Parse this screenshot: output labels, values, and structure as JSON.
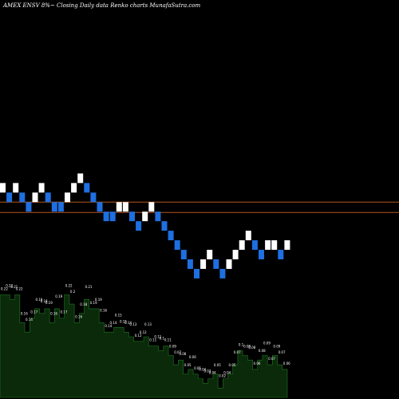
{
  "header": {
    "title": "AMEX  ENSV 8%~  Closing Daily data  Renko  charts MunafaSutra.com"
  },
  "colors": {
    "background": "#000000",
    "up_brick": "#ffffff",
    "down_brick": "#1e6fe0",
    "reference_line": "#b3541e",
    "volume_fill": "#0a2a0a",
    "volume_outline": "#1f7a1f",
    "volume_label": "#ffffff"
  },
  "chart_data": {
    "type": "renko",
    "price_scale_top": 0.36,
    "price_scale_bottom": 0.13,
    "brick_size": 0.0055,
    "reference_lines": [
      0.2435,
      0.2375
    ],
    "bricks": [
      {
        "dir": "up",
        "close": 0.2545
      },
      {
        "dir": "down",
        "close": 0.249
      },
      {
        "dir": "up",
        "close": 0.2545
      },
      {
        "dir": "down",
        "close": 0.249
      },
      {
        "dir": "down",
        "close": 0.2435
      },
      {
        "dir": "up",
        "close": 0.249
      },
      {
        "dir": "up",
        "close": 0.2545
      },
      {
        "dir": "down",
        "close": 0.249
      },
      {
        "dir": "down",
        "close": 0.2435
      },
      {
        "dir": "down",
        "close": 0.2435
      },
      {
        "dir": "up",
        "close": 0.249
      },
      {
        "dir": "up",
        "close": 0.2545
      },
      {
        "dir": "up",
        "close": 0.26
      },
      {
        "dir": "down",
        "close": 0.2545
      },
      {
        "dir": "down",
        "close": 0.249
      },
      {
        "dir": "down",
        "close": 0.2435
      },
      {
        "dir": "down",
        "close": 0.238
      },
      {
        "dir": "down",
        "close": 0.238
      },
      {
        "dir": "up",
        "close": 0.2435
      },
      {
        "dir": "up",
        "close": 0.2435
      },
      {
        "dir": "down",
        "close": 0.238
      },
      {
        "dir": "down",
        "close": 0.2325
      },
      {
        "dir": "up",
        "close": 0.238
      },
      {
        "dir": "up",
        "close": 0.2435
      },
      {
        "dir": "down",
        "close": 0.238
      },
      {
        "dir": "down",
        "close": 0.2325
      },
      {
        "dir": "down",
        "close": 0.227
      },
      {
        "dir": "down",
        "close": 0.2215
      },
      {
        "dir": "down",
        "close": 0.216
      },
      {
        "dir": "down",
        "close": 0.2105
      },
      {
        "dir": "down",
        "close": 0.205
      },
      {
        "dir": "up",
        "close": 0.2105
      },
      {
        "dir": "up",
        "close": 0.216
      },
      {
        "dir": "down",
        "close": 0.2105
      },
      {
        "dir": "down",
        "close": 0.205
      },
      {
        "dir": "up",
        "close": 0.2105
      },
      {
        "dir": "up",
        "close": 0.216
      },
      {
        "dir": "up",
        "close": 0.2215
      },
      {
        "dir": "up",
        "close": 0.227
      },
      {
        "dir": "down",
        "close": 0.2215
      },
      {
        "dir": "down",
        "close": 0.216
      },
      {
        "dir": "up",
        "close": 0.2215
      },
      {
        "dir": "up",
        "close": 0.2215
      },
      {
        "dir": "down",
        "close": 0.216
      },
      {
        "dir": "up",
        "close": 0.2215
      }
    ],
    "volume": {
      "scale_max": 0.26,
      "values": [
        0.22,
        0.22,
        0.21,
        0.22,
        0.16,
        0.14,
        0.17,
        0.19,
        0.18,
        0.19,
        0.16,
        0.19,
        0.17,
        0.22,
        0.2,
        0.16,
        0.18,
        0.21,
        0.19,
        0.19,
        0.16,
        0.14,
        0.14,
        0.15,
        0.15,
        0.14,
        0.13,
        0.12,
        0.12,
        0.13,
        0.11,
        0.11,
        0.1,
        0.11,
        0.09,
        0.07,
        0.08,
        0.05,
        0.06,
        0.05,
        0.04,
        0.03,
        0.04,
        0.05,
        0.02,
        0.04,
        0.05,
        0.07,
        0.1,
        0.09,
        0.08,
        0.06,
        0.08,
        0.09,
        0.07,
        0.09,
        0.07,
        0.06
      ],
      "labels": [
        "0.22",
        "0.22",
        "0.21",
        "0.22",
        "0.16",
        "0.14",
        "0.17",
        "0.19",
        "0.18",
        "0.19",
        "0.16",
        "0.19",
        "0.17",
        "0.22",
        "0.2",
        "0.16",
        "0.18",
        "0.21",
        "0.19",
        "0.19",
        "0.16",
        "0.14",
        "0.14",
        "0.15",
        "0.15",
        "0.14",
        "0.13",
        "0.12",
        "0.12",
        "0.13",
        "0.11",
        "0.11",
        "0.1",
        "0.11",
        "0.09",
        "0.07",
        "0.08",
        "0.05",
        "0.06",
        "0.05",
        "0.04",
        "0.03",
        "0.04",
        "0.05",
        "0.02",
        "0.04",
        "0.05",
        "0.07",
        "0.1",
        "0.09",
        "0.08",
        "0.06",
        "0.08",
        "0.09",
        "0.07",
        "0.09",
        "0.07",
        "0.06"
      ]
    }
  }
}
